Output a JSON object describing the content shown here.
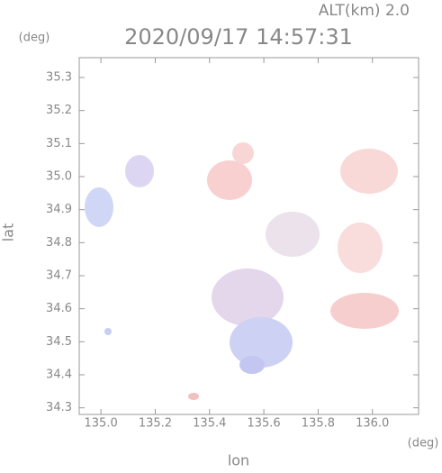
{
  "chart_data": {
    "type": "map",
    "title": "2020/09/17 14:57:31",
    "subtitle": "ALT(km) 2.0",
    "x_label": "lon",
    "y_label": "lat",
    "x_unit": "(deg)",
    "y_unit": "(deg)",
    "xlim": [
      134.92,
      136.17
    ],
    "xticks": [
      {
        "value": 135.0,
        "label": "135.0"
      },
      135.2,
      135.4,
      135.6,
      135.8,
      {
        "value": 136.0,
        "label": "136.0"
      }
    ],
    "ylim": [
      34.28,
      35.36
    ],
    "yticks": [
      35.3,
      35.2,
      35.1,
      {
        "value": 35.0,
        "label": "35.0"
      },
      34.9,
      34.8,
      34.7,
      34.6,
      34.5,
      34.4,
      34.3
    ]
  }
}
